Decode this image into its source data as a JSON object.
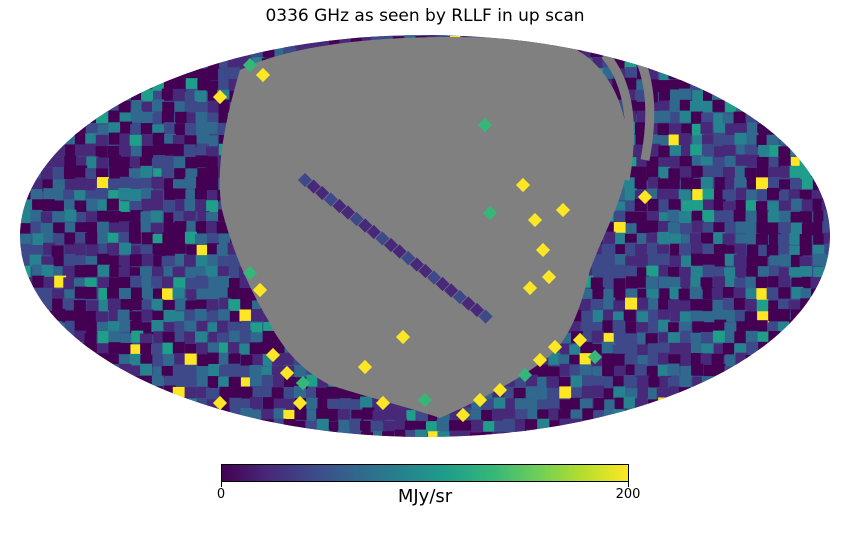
{
  "title": "0336 GHz as seen by RLLF in up scan",
  "projection": "mollweide",
  "colormap": {
    "name": "viridis",
    "stops": [
      "#440154",
      "#482878",
      "#3e4989",
      "#31688e",
      "#26828e",
      "#1f9e89",
      "#35b779",
      "#6ece58",
      "#b5de2b",
      "#fde725"
    ],
    "min": "0",
    "max": "200",
    "unit": "MJy/sr"
  },
  "masked_color": "#808080"
}
